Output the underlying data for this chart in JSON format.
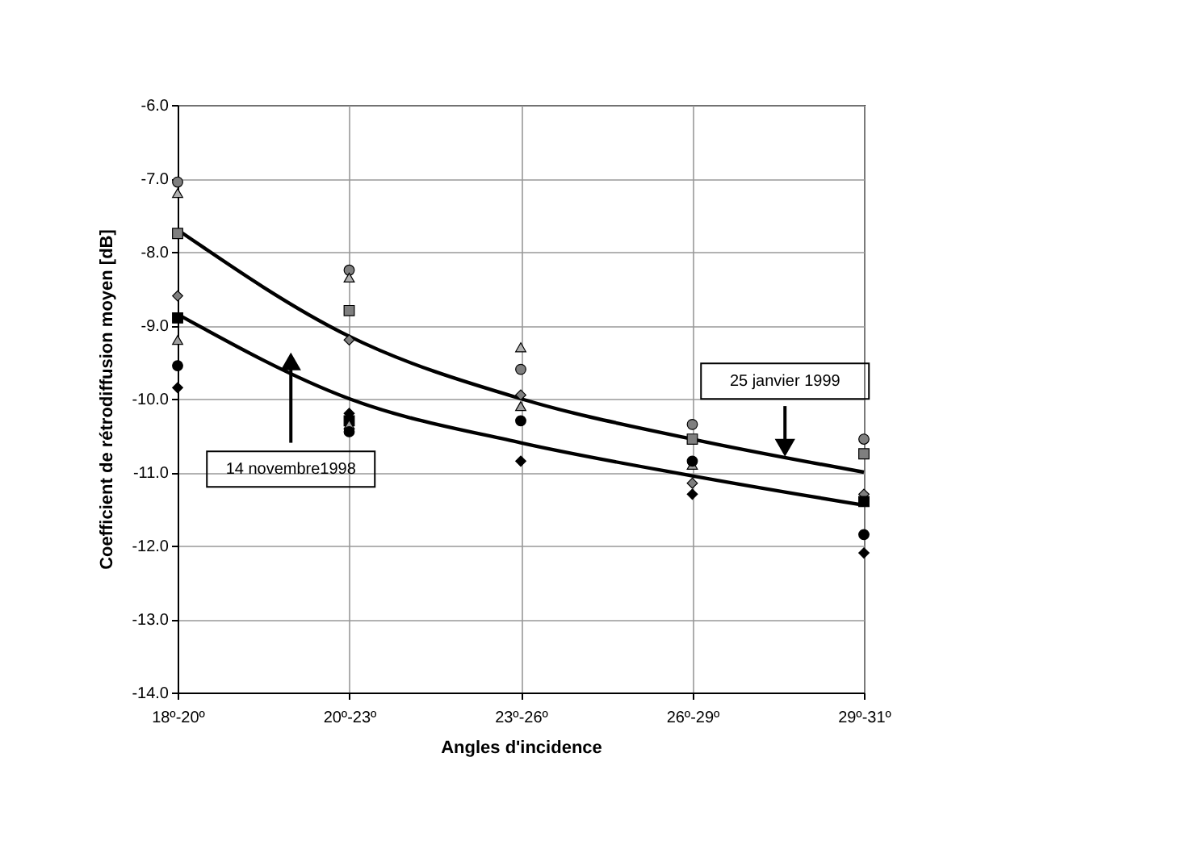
{
  "chart_data": {
    "type": "scatter",
    "xlabel": "Angles d'incidence",
    "ylabel": "Coefficient de rétrodiffusion moyen [dB]",
    "categories": [
      "18º-20º",
      "20º-23º",
      "23º-26º",
      "26º-29º",
      "29º-31º"
    ],
    "ylim": [
      -14.0,
      -6.0
    ],
    "yticks": [
      {
        "value": -14,
        "label": "-14.0"
      },
      {
        "value": -13,
        "label": "-13.0"
      },
      {
        "value": -12,
        "label": "-12.0"
      },
      {
        "value": -11,
        "label": "-11.0"
      },
      {
        "value": -10,
        "label": "-10.0"
      },
      {
        "value": -9,
        "label": "-9.0"
      },
      {
        "value": -8,
        "label": "-8.0"
      },
      {
        "value": -7,
        "label": "-7.0"
      },
      {
        "value": -6,
        "label": "-6.0"
      }
    ],
    "grid": true,
    "series": [
      {
        "type": "line",
        "color": "#000000",
        "values": [
          -7.7,
          -9.15,
          -10.0,
          -10.55,
          -11.0
        ],
        "marker": "none",
        "line_style": "solid"
      },
      {
        "type": "line",
        "color": "#000000",
        "values": [
          -8.85,
          -10.0,
          -10.6,
          -11.05,
          -11.45
        ],
        "marker": "none",
        "line_style": "solid"
      },
      {
        "color": "#7f7f7f",
        "marker": "circle",
        "values": [
          -7.05,
          -8.25,
          -9.6,
          -10.35,
          -10.55
        ]
      },
      {
        "color": "#b0b0b0",
        "marker": "triangle",
        "values": [
          -7.2,
          -8.35,
          -9.3,
          null,
          null
        ]
      },
      {
        "color": "#7f7f7f",
        "marker": "square",
        "values": [
          -7.75,
          -8.8,
          null,
          -10.55,
          -10.75
        ]
      },
      {
        "color": "#7f7f7f",
        "marker": "diamond",
        "values": [
          -8.6,
          -9.2,
          -9.95,
          -11.15,
          -11.3
        ]
      },
      {
        "color": "#000000",
        "marker": "square",
        "values": [
          -8.9,
          -10.3,
          null,
          null,
          -11.4
        ]
      },
      {
        "color": "#a0a0a0",
        "marker": "triangle",
        "values": [
          -9.2,
          -10.35,
          -10.1,
          -10.9,
          null
        ]
      },
      {
        "color": "#000000",
        "marker": "circle",
        "values": [
          -9.55,
          -10.45,
          -10.3,
          -10.85,
          -11.85
        ]
      },
      {
        "color": "#000000",
        "marker": "diamond",
        "values": [
          -9.85,
          -10.2,
          -10.85,
          -11.3,
          -12.1
        ]
      }
    ],
    "annotations": [
      {
        "text": "25 janvier 1999",
        "y": -10.8
      },
      "14 novembre1998"
    ]
  }
}
